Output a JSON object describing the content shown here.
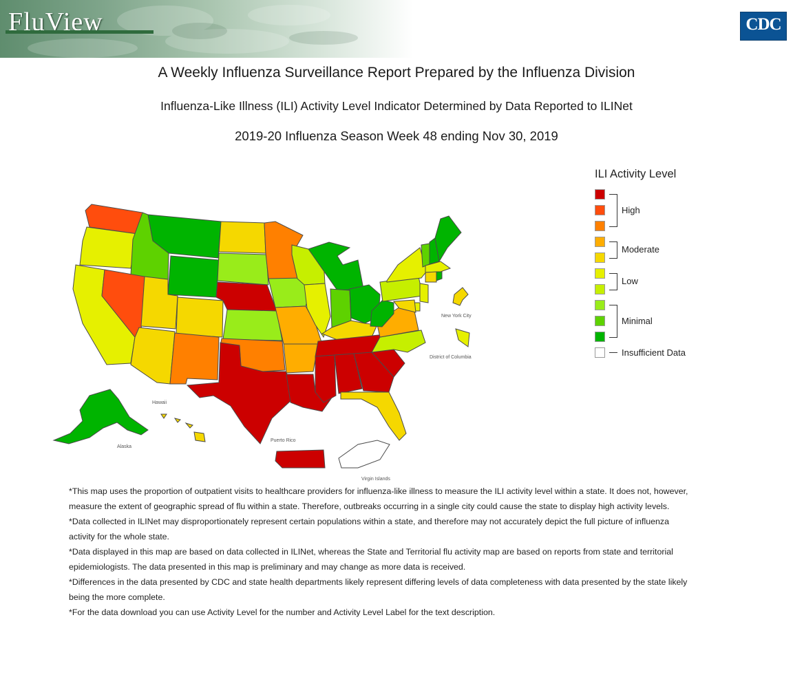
{
  "header": {
    "brand": "FluView",
    "logo_text": "CDC",
    "title": "A Weekly Influenza Surveillance Report Prepared by the Influenza Division",
    "subtitle": "Influenza-Like Illness (ILI) Activity Level Indicator Determined by Data Reported to ILINet",
    "week": "2019-20 Influenza Season Week 48 ending Nov 30, 2019"
  },
  "colors": {
    "level_13": "#cc0000",
    "level_12": "#ff4d0d",
    "level_11": "#ff8000",
    "level_10": "#ffad00",
    "level_9": "#f5d800",
    "level_8": "#e6f000",
    "level_7": "#c6ef00",
    "level_6": "#99ec1a",
    "level_5": "#5ed200",
    "level_4": "#00b400",
    "insufficient": "#ffffff"
  },
  "legend": {
    "title": "ILI Activity Level",
    "groups": [
      {
        "label": "High",
        "levels": [
          13,
          12,
          11
        ]
      },
      {
        "label": "Moderate",
        "levels": [
          10,
          9
        ]
      },
      {
        "label": "Low",
        "levels": [
          8,
          7
        ]
      },
      {
        "label": "Minimal",
        "levels": [
          6,
          5,
          4
        ]
      },
      {
        "label": "Insufficient Data",
        "levels": [
          "insufficient"
        ]
      }
    ]
  },
  "map_labels": {
    "new_york_city": "New York City",
    "district_of_columbia": "District of Columbia",
    "hawaii": "Hawaii",
    "alaska": "Alaska",
    "puerto_rico": "Puerto Rico",
    "virgin_islands": "Virgin Islands"
  },
  "regions": [
    {
      "name": "Washington",
      "level": 12
    },
    {
      "name": "Oregon",
      "level": 8
    },
    {
      "name": "California",
      "level": 8
    },
    {
      "name": "Idaho",
      "level": 5
    },
    {
      "name": "Nevada",
      "level": 12
    },
    {
      "name": "Montana",
      "level": 4
    },
    {
      "name": "Wyoming",
      "level": 4
    },
    {
      "name": "Utah",
      "level": 9
    },
    {
      "name": "Colorado",
      "level": 9
    },
    {
      "name": "Arizona",
      "level": 9
    },
    {
      "name": "New Mexico",
      "level": 11
    },
    {
      "name": "North Dakota",
      "level": 9
    },
    {
      "name": "South Dakota",
      "level": 6
    },
    {
      "name": "Nebraska",
      "level": 13
    },
    {
      "name": "Kansas",
      "level": 6
    },
    {
      "name": "Oklahoma",
      "level": 11
    },
    {
      "name": "Texas",
      "level": 13
    },
    {
      "name": "Minnesota",
      "level": 11
    },
    {
      "name": "Iowa",
      "level": 6
    },
    {
      "name": "Missouri",
      "level": 10
    },
    {
      "name": "Arkansas",
      "level": 10
    },
    {
      "name": "Louisiana",
      "level": 13
    },
    {
      "name": "Wisconsin",
      "level": 7
    },
    {
      "name": "Illinois",
      "level": 8
    },
    {
      "name": "Michigan",
      "level": 4
    },
    {
      "name": "Indiana",
      "level": 5
    },
    {
      "name": "Ohio",
      "level": 4
    },
    {
      "name": "Kentucky",
      "level": 9
    },
    {
      "name": "Tennessee",
      "level": 13
    },
    {
      "name": "Mississippi",
      "level": 13
    },
    {
      "name": "Alabama",
      "level": 13
    },
    {
      "name": "Georgia",
      "level": 13
    },
    {
      "name": "Florida",
      "level": 9
    },
    {
      "name": "South Carolina",
      "level": 13
    },
    {
      "name": "North Carolina",
      "level": 7
    },
    {
      "name": "Virginia",
      "level": 10
    },
    {
      "name": "West Virginia",
      "level": 4
    },
    {
      "name": "Pennsylvania",
      "level": 7
    },
    {
      "name": "New York",
      "level": 8
    },
    {
      "name": "Vermont",
      "level": 5
    },
    {
      "name": "New Hampshire",
      "level": 4
    },
    {
      "name": "Maine",
      "level": 4
    },
    {
      "name": "Massachusetts",
      "level": 8
    },
    {
      "name": "Connecticut",
      "level": 9
    },
    {
      "name": "Rhode Island",
      "level": 4
    },
    {
      "name": "New Jersey",
      "level": 8
    },
    {
      "name": "Delaware",
      "level": 8
    },
    {
      "name": "Maryland",
      "level": 9
    },
    {
      "name": "District of Columbia",
      "level": 8
    },
    {
      "name": "New York City",
      "level": 9
    },
    {
      "name": "Alaska",
      "level": 4
    },
    {
      "name": "Hawaii",
      "level": 9
    },
    {
      "name": "Puerto Rico",
      "level": 13
    },
    {
      "name": "Virgin Islands",
      "level": "insufficient"
    }
  ],
  "notes": [
    "*This map uses the proportion of outpatient visits to healthcare providers for influenza-like illness to measure the ILI activity level within a state. It does not, however, measure the extent of geographic spread of flu within a state. Therefore, outbreaks occurring in a single city could cause the state to display high activity levels.",
    "*Data collected in ILINet may disproportionately represent certain populations within a state, and therefore may not accurately depict the full picture of influenza activity for the whole state.",
    "*Data displayed in this map are based on data collected in ILINet, whereas the State and Territorial flu activity map are based on reports from state and territorial epidemiologists. The data presented in this map is preliminary and may change as more data is received.",
    "*Differences in the data presented by CDC and state health departments likely represent differing levels of data completeness with data presented by the state likely being the more complete.",
    "*For the data download you can use Activity Level for the number and Activity Level Label for the text description."
  ]
}
